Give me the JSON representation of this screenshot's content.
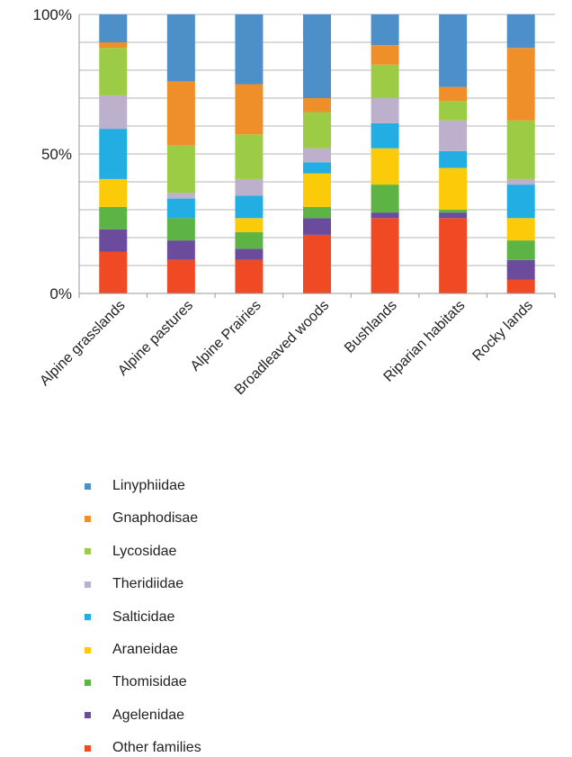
{
  "chart_data": {
    "type": "bar",
    "stacked": true,
    "percent": true,
    "categories": [
      "Alpine grasslands",
      "Alpine pastures",
      "Alpine Prairies",
      "Broadleaved woods",
      "Bushlands",
      "Riparian habitats",
      "Rocky lands"
    ],
    "y_ticks": [
      "0%",
      "50%",
      "100%"
    ],
    "ylim": [
      0,
      100
    ],
    "grid": true,
    "legend_position": "bottom",
    "series": [
      {
        "name": "Other families",
        "color": "#ef4a23",
        "values": [
          15,
          12,
          12,
          21,
          27,
          27,
          5
        ]
      },
      {
        "name": "Agelenidae",
        "color": "#6a4b9c",
        "values": [
          8,
          7,
          4,
          6,
          2,
          2,
          7
        ]
      },
      {
        "name": "Thomisidae",
        "color": "#5db344",
        "values": [
          8,
          8,
          6,
          4,
          10,
          1,
          7
        ]
      },
      {
        "name": "Araneidae",
        "color": "#fbcb0a",
        "values": [
          10,
          0,
          5,
          12,
          13,
          15,
          8
        ]
      },
      {
        "name": "Salticidae",
        "color": "#23aee3",
        "values": [
          18,
          7,
          8,
          4,
          9,
          6,
          12
        ]
      },
      {
        "name": "Theridiidae",
        "color": "#bdb0cd",
        "values": [
          12,
          2,
          6,
          5,
          9,
          11,
          2
        ]
      },
      {
        "name": "Lycosidae",
        "color": "#9ccb45",
        "values": [
          17,
          17,
          16,
          13,
          12,
          7,
          21
        ]
      },
      {
        "name": "Gnaphodisae",
        "color": "#ef8f2a",
        "values": [
          2,
          23,
          18,
          5,
          7,
          5,
          26
        ]
      },
      {
        "name": "Linyphiidae",
        "color": "#4d8fc9",
        "values": [
          10,
          24,
          25,
          30,
          11,
          26,
          12
        ]
      }
    ],
    "legend_order": [
      "Linyphiidae",
      "Gnaphodisae",
      "Lycosidae",
      "Theridiidae",
      "Salticidae",
      "Araneidae",
      "Thomisidae",
      "Agelenidae",
      "Other families"
    ]
  }
}
